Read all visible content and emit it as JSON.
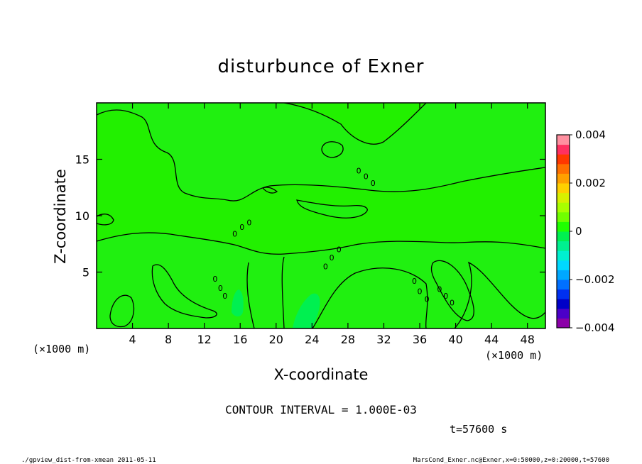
{
  "chart_data": {
    "type": "heatmap",
    "title": "disturbunce of Exner",
    "xlabel": "X-coordinate",
    "ylabel": "Z-coordinate",
    "x_unit": "(×1000 m)",
    "y_unit": "(×1000 m)",
    "xlim": [
      0,
      50
    ],
    "ylim": [
      0,
      20
    ],
    "x_ticks": [
      4,
      8,
      12,
      16,
      20,
      24,
      28,
      32,
      36,
      40,
      44,
      48
    ],
    "y_ticks": [
      5,
      10,
      15
    ],
    "contour_label": "0",
    "contour_interval_text": "CONTOUR INTERVAL = 1.000E-03",
    "time_text": "t=57600 s",
    "colorbar": {
      "min": -0.004,
      "max": 0.004,
      "tick_labels": [
        "0.004",
        "0.002",
        "0",
        "−0.002",
        "−0.004"
      ],
      "tick_values": [
        0.004,
        0.002,
        0,
        -0.002,
        -0.004
      ],
      "colors": [
        "#8b00a8",
        "#4b00c8",
        "#0000c8",
        "#0030f0",
        "#0070ff",
        "#00a8ff",
        "#00d8ff",
        "#00f0d0",
        "#00f090",
        "#00f050",
        "#20ff00",
        "#70ff00",
        "#a8ff00",
        "#d8f000",
        "#ffd000",
        "#ffa000",
        "#ff7000",
        "#ff3800",
        "#ff3060",
        "#ff90a0"
      ]
    },
    "field_colors": {
      "background": "#22f000",
      "lower": "#00f050",
      "lowest": "#00f080"
    }
  },
  "footer": {
    "left": "./gpview_dist-from-xmean  2011-05-11",
    "right": "MarsCond_Exner.nc@Exner,x=0:50000,z=0:20000,t=57600"
  }
}
